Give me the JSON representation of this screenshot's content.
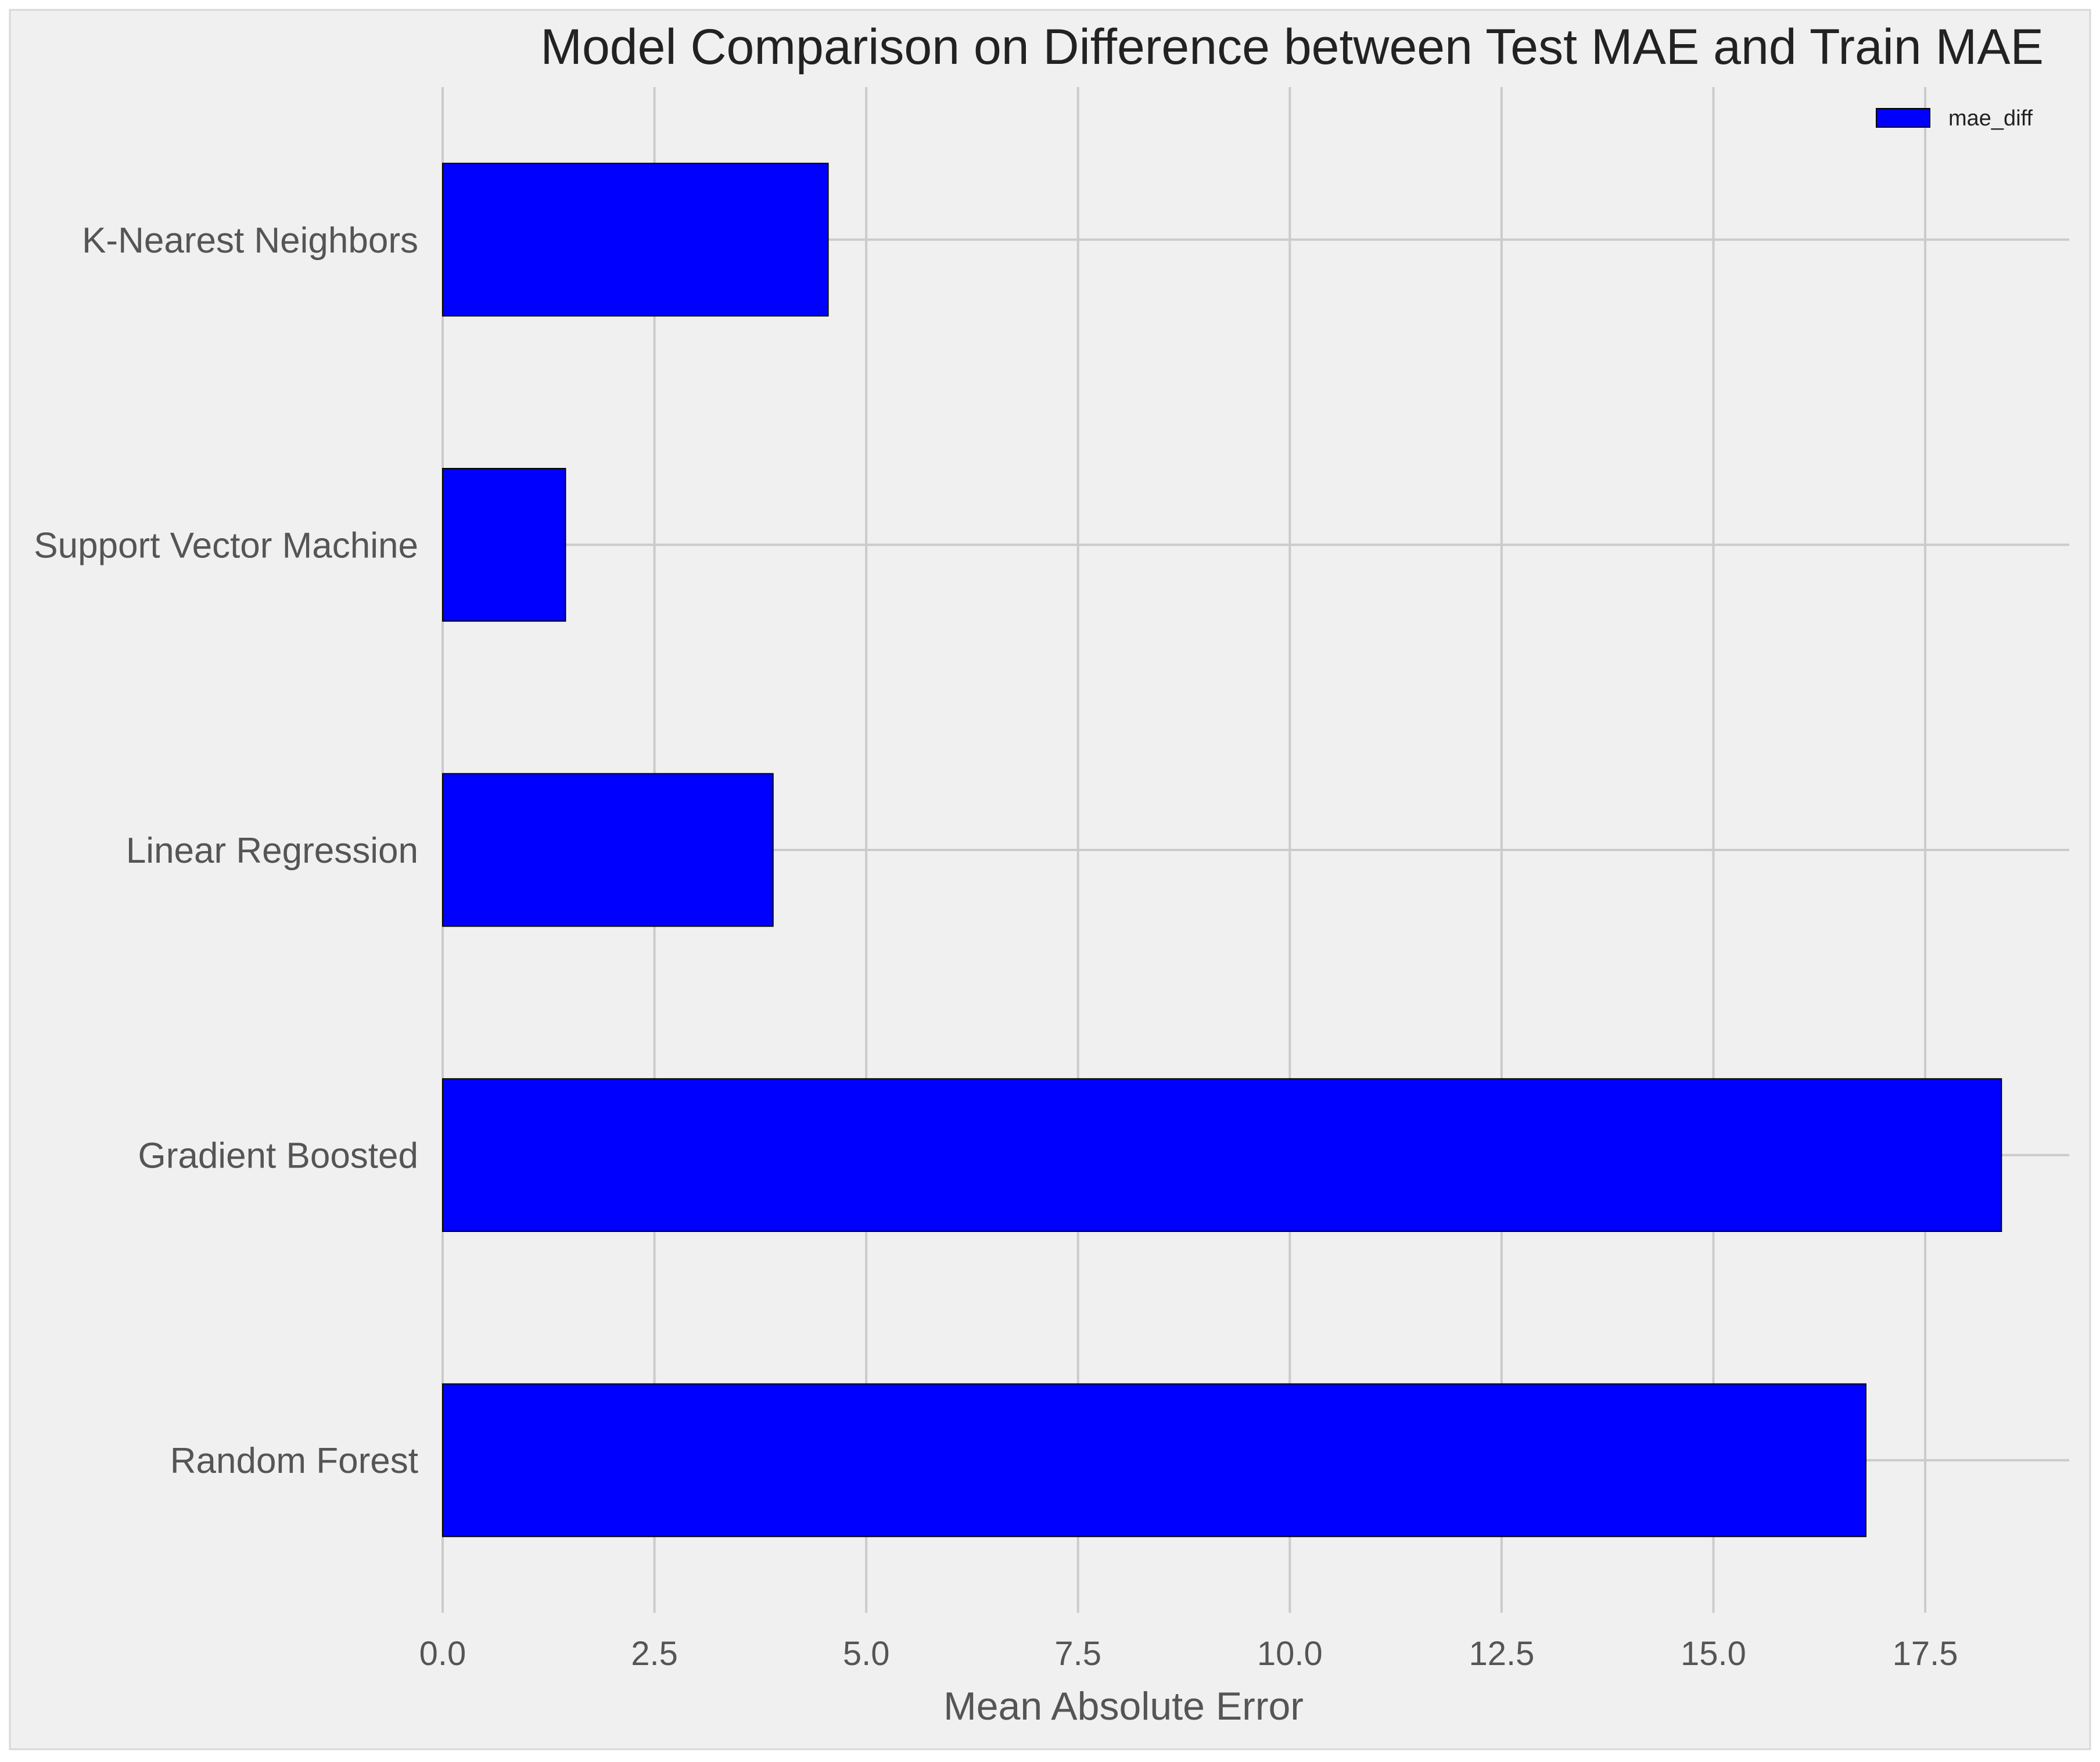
{
  "chart_data": {
    "type": "bar",
    "orientation": "horizontal",
    "title": "Model Comparison on Difference between Test MAE and Train MAE",
    "xlabel": "Mean Absolute Error",
    "ylabel": "",
    "xlim": [
      0,
      19.2
    ],
    "xticks": [
      0.0,
      2.5,
      5.0,
      7.5,
      10.0,
      12.5,
      15.0,
      17.5
    ],
    "xtick_labels": [
      "0.0",
      "2.5",
      "5.0",
      "7.5",
      "10.0",
      "12.5",
      "15.0",
      "17.5"
    ],
    "categories": [
      "K-Nearest Neighbors",
      "Support Vector Machine",
      "Linear Regression",
      "Gradient Boosted",
      "Random Forest"
    ],
    "series": [
      {
        "name": "mae_diff",
        "color": "#0000ff",
        "values": [
          4.55,
          1.45,
          3.9,
          18.4,
          16.8
        ]
      }
    ],
    "grid": true,
    "legend_position": "top-right",
    "background_color": "#f0f0f0",
    "grid_color": "#cbcbcb"
  }
}
